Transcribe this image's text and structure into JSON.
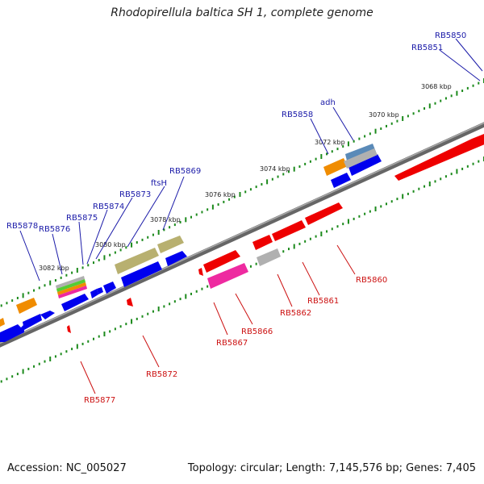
{
  "header": {
    "title": "Rhodopirellula baltica SH 1, complete genome"
  },
  "footer": {
    "accession": "Accession: NC_005027",
    "summary": "Topology: circular; Length: 7,145,576 bp; Genes: 7,405"
  },
  "scale_labels": [
    "3068 kbp",
    "3070 kbp",
    "3072 kbp",
    "3074 kbp",
    "3076 kbp",
    "3078 kbp",
    "3080 kbp",
    "3082 kbp"
  ],
  "top_strand_labels": [
    "RB5850",
    "RB5851",
    "adh",
    "RB5858",
    "RB5869",
    "ftsH",
    "RB5873",
    "RB5874",
    "RB5875",
    "RB5876",
    "RB5878"
  ],
  "bottom_strand_labels": [
    "RB5860",
    "RB5861",
    "RB5862",
    "RB5866",
    "RB5867",
    "RB5872",
    "RB5877"
  ],
  "colors": {
    "top_label": "#1a1aa8",
    "bottom_label": "#cc1111",
    "forward_gene": "#0000ee",
    "reverse_gene": "#ee0000",
    "backbone": "#777777",
    "tick": "#1c8a1c",
    "olive_feature": "#b8b070",
    "orange_feature": "#f08c00",
    "pink_feature": "#ee2aa0",
    "grey_feature": "#b0b0b0",
    "steel_feature": "#5a8ab8"
  }
}
